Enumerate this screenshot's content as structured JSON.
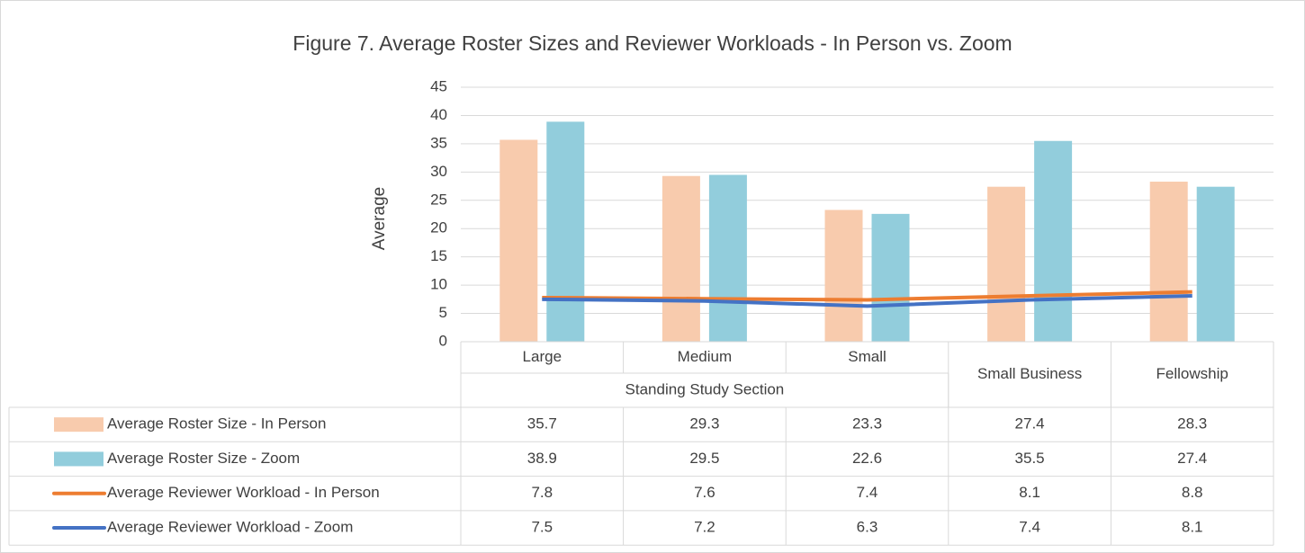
{
  "chart_data": {
    "type": "combo",
    "title": "Figure 7. Average Roster Sizes and Reviewer Workloads - In Person vs. Zoom",
    "ylabel": "Average",
    "categories": [
      "Large",
      "Medium",
      "Small",
      null,
      null
    ],
    "groups": [
      "Standing Study Section",
      "Standing Study Section",
      "Standing Study Section",
      "Small Business",
      "Fellowship"
    ],
    "ylim": [
      0,
      45
    ],
    "yticks": [
      0,
      5,
      10,
      15,
      20,
      25,
      30,
      35,
      40,
      45
    ],
    "grid": true,
    "data_table": true,
    "series": [
      {
        "name": "Average Roster Size - In Person",
        "type": "bar",
        "color": "#f8cbad",
        "values": [
          35.7,
          29.3,
          23.3,
          27.4,
          28.3
        ]
      },
      {
        "name": "Average Roster Size - Zoom",
        "type": "bar",
        "color": "#92cddc",
        "values": [
          38.9,
          29.5,
          22.6,
          35.5,
          27.4
        ]
      },
      {
        "name": "Average Reviewer Workload - In Person",
        "type": "line",
        "color": "#ed7d31",
        "values": [
          7.8,
          7.6,
          7.4,
          8.1,
          8.8
        ]
      },
      {
        "name": "Average Reviewer Workload - Zoom",
        "type": "line",
        "color": "#4472c4",
        "values": [
          7.5,
          7.2,
          6.3,
          7.4,
          8.1
        ]
      }
    ]
  }
}
